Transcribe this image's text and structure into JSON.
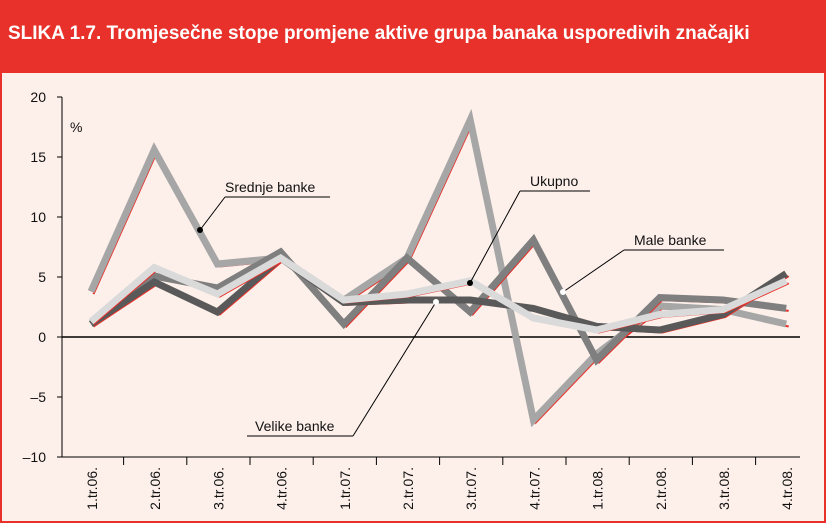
{
  "chart_data": {
    "type": "line",
    "title": "SLIKA 1.7. Tromjesečne stope promjene aktive grupa banaka usporedivih značajki",
    "y_label": "%",
    "categories": [
      "1.tr.06.",
      "2.tr.06.",
      "3.tr.06.",
      "4.tr.06.",
      "1.tr.07.",
      "2.tr.07.",
      "3.tr.07.",
      "4.tr.07.",
      "1.tr.08.",
      "2.tr.08.",
      "3.tr.08.",
      "4.tr.08."
    ],
    "series": [
      {
        "name": "Srednje banke",
        "color": "#a6a6a6",
        "values": [
          3.7,
          15.5,
          6,
          6.5,
          3,
          6.5,
          18,
          -7,
          -1.5,
          2.5,
          2.2,
          1
        ]
      },
      {
        "name": "Male banke",
        "color": "#7f7f7f",
        "values": [
          1,
          5,
          4,
          7,
          1,
          6.5,
          2,
          8,
          -2,
          3.2,
          3,
          2.3
        ]
      },
      {
        "name": "Velike banke",
        "color": "#595959",
        "values": [
          1,
          4.5,
          2,
          6.5,
          2.8,
          3,
          3,
          2.3,
          0.8,
          0.5,
          1.8,
          5.2
        ]
      },
      {
        "name": "Ukupno",
        "color": "#dadada",
        "values": [
          1.2,
          5.7,
          3.5,
          6.5,
          3,
          3.5,
          4.6,
          1.5,
          0.5,
          1.8,
          2.2,
          4.6
        ]
      }
    ],
    "ylim": [
      -10,
      20
    ],
    "yticks": [
      {
        "value": -10,
        "label": "–10"
      },
      {
        "value": -5,
        "label": "–5"
      },
      0,
      5,
      10,
      15,
      20
    ],
    "shadow_color": "#e8312a"
  }
}
